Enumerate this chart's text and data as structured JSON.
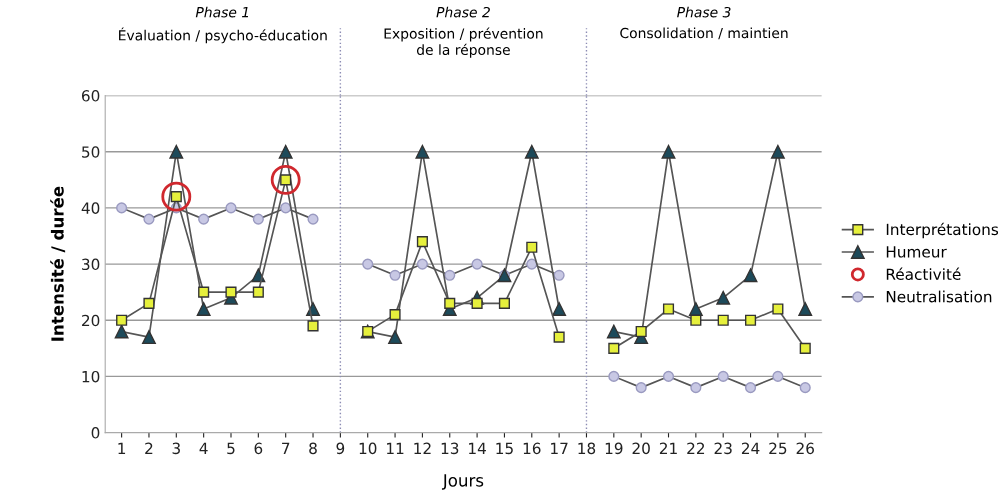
{
  "chart_data": {
    "type": "line",
    "xlabel": "Jours",
    "ylabel": "Intensité / durée",
    "categories": [
      "1",
      "2",
      "3",
      "4",
      "5",
      "6",
      "7",
      "8",
      "9",
      "10",
      "11",
      "12",
      "13",
      "14",
      "15",
      "16",
      "17",
      "18",
      "19",
      "20",
      "21",
      "22",
      "23",
      "24",
      "25",
      "26"
    ],
    "series": [
      {
        "name": "Interprétations",
        "color": "#e6f03c",
        "marker": "square",
        "values": [
          20,
          23,
          42,
          25,
          25,
          25,
          45,
          19,
          null,
          18,
          21,
          34,
          23,
          23,
          23,
          33,
          17,
          null,
          15,
          18,
          22,
          20,
          20,
          20,
          22,
          15
        ]
      },
      {
        "name": "Humeur",
        "color": "#1d4a5a",
        "marker": "triangle",
        "values": [
          18,
          17,
          50,
          22,
          24,
          28,
          50,
          22,
          null,
          18,
          17,
          50,
          22,
          24,
          28,
          50,
          22,
          null,
          18,
          17,
          50,
          22,
          24,
          28,
          50,
          22
        ]
      },
      {
        "name": "Réactivité",
        "type": "scatter",
        "color": "#d0282e",
        "marker": "circle",
        "values": [
          null,
          null,
          42,
          null,
          null,
          null,
          45,
          null,
          null,
          null,
          null,
          null,
          null,
          null,
          null,
          null,
          null,
          null,
          null,
          null,
          null,
          null,
          null,
          null,
          null,
          null
        ]
      },
      {
        "name": "Neutralisation",
        "color": "#c8c8e4",
        "marker": "circle",
        "values": [
          40,
          38,
          40,
          38,
          40,
          38,
          40,
          38,
          null,
          30,
          28,
          30,
          28,
          30,
          28,
          30,
          28,
          null,
          10,
          8,
          10,
          8,
          10,
          8,
          10,
          8
        ]
      }
    ],
    "ylim": [
      0,
      60
    ],
    "yticks": [
      0,
      10,
      20,
      30,
      40,
      50,
      60
    ],
    "grid": "y",
    "legend": "right",
    "line_style": "solid",
    "ref_lines": [
      {
        "axis": "x",
        "value": "9",
        "color": "#8c8cb4",
        "line_style": "dotted"
      },
      {
        "axis": "x",
        "value": "18",
        "color": "#8c8cb4",
        "line_style": "dotted"
      }
    ],
    "annotations": [
      "Phase 1",
      "Évaluation / psycho-éducation",
      "Phase 2",
      "Exposition / prévention\nde la réponse",
      "Phase 3",
      "Consolidation / maintien"
    ]
  }
}
